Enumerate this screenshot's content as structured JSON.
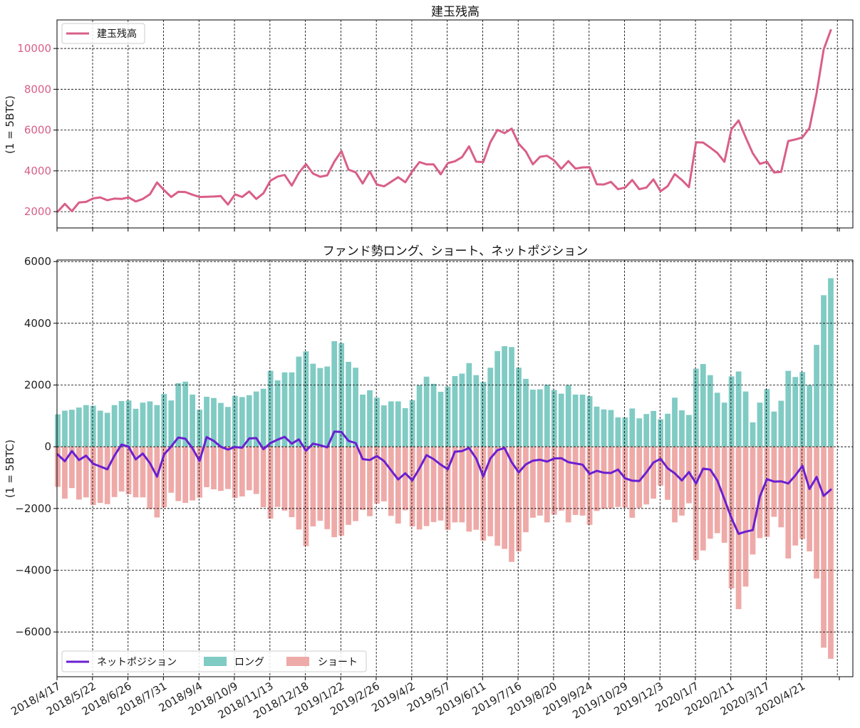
{
  "colors": {
    "oi_line": "#d95f87",
    "oi_tick": "#d95f87",
    "long_bar": "#80cbc4",
    "short_bar": "#eeaaa8",
    "net_line": "#6a1fd1",
    "grid": "#000000",
    "axis": "#000000",
    "text": "#222222"
  },
  "chart_data": [
    {
      "type": "line",
      "title": "建玉残高",
      "xlabel": "",
      "ylabel": "(1 = 5BTC)",
      "ylim": [
        1200,
        11400
      ],
      "yticks": [
        2000,
        4000,
        6000,
        8000,
        10000
      ],
      "grid": true,
      "legend_position": "top-left",
      "series": [
        {
          "name": "建玉残高",
          "values": [
            2000,
            2380,
            2020,
            2450,
            2480,
            2650,
            2700,
            2560,
            2640,
            2620,
            2700,
            2500,
            2620,
            2850,
            3430,
            3050,
            2720,
            2970,
            2960,
            2830,
            2720,
            2730,
            2740,
            2760,
            2350,
            2850,
            2720,
            2990,
            2620,
            2900,
            3520,
            3720,
            3800,
            3280,
            3900,
            4330,
            3870,
            3710,
            3780,
            4450,
            4970,
            4060,
            3930,
            3380,
            3970,
            3330,
            3240,
            3460,
            3690,
            3440,
            3980,
            4430,
            4320,
            4320,
            3830,
            4380,
            4470,
            4670,
            5200,
            4450,
            4430,
            5400,
            6010,
            5850,
            6070,
            5330,
            4950,
            4320,
            4690,
            4740,
            4510,
            4100,
            4480,
            4110,
            4170,
            4180,
            3340,
            3330,
            3460,
            3100,
            3180,
            3550,
            3100,
            3180,
            3580,
            3000,
            3250,
            3840,
            3550,
            3200,
            5400,
            5390,
            5140,
            4880,
            4440,
            6040,
            6470,
            5640,
            4860,
            4340,
            4450,
            3920,
            3950,
            5460,
            5540,
            5640,
            6100,
            7810,
            9950,
            10900
          ]
        }
      ]
    },
    {
      "type": "bar",
      "title": "ファンド勢ロング、ショート、ネットポジション",
      "xlabel": "",
      "ylabel": "(1 = 5BTC)",
      "ylim": [
        -7450,
        6050
      ],
      "yticks": [
        -6000,
        -4000,
        -2000,
        0,
        2000,
        4000,
        6000
      ],
      "grid": true,
      "legend_position": "bottom-left",
      "x_tick_labels": [
        "2018/4/17",
        "2018/5/22",
        "2018/6/26",
        "2018/7/31",
        "2018/9/4",
        "2018/10/9",
        "2018/11/13",
        "2018/12/18",
        "2019/1/22",
        "2019/2/26",
        "2019/4/2",
        "2019/5/7",
        "2019/6/11",
        "2019/7/16",
        "2019/8/20",
        "2019/9/24",
        "2019/10/29",
        "2019/12/3",
        "2020/1/7",
        "2020/2/11",
        "2020/3/17",
        "2020/4/21"
      ],
      "series": [
        {
          "name": "ロング",
          "type": "bar",
          "values": [
            1050,
            1170,
            1200,
            1270,
            1350,
            1330,
            1170,
            1100,
            1350,
            1480,
            1500,
            1230,
            1430,
            1470,
            1350,
            1710,
            1500,
            2060,
            2110,
            1690,
            1200,
            1620,
            1580,
            1420,
            1290,
            1650,
            1610,
            1670,
            1790,
            1880,
            2460,
            2150,
            2410,
            2410,
            2920,
            3090,
            2690,
            2550,
            2600,
            3420,
            3360,
            2750,
            2560,
            1690,
            1830,
            1590,
            1340,
            1470,
            1470,
            1250,
            1510,
            2000,
            2270,
            2040,
            1780,
            1950,
            2290,
            2370,
            2710,
            2320,
            2100,
            2560,
            3100,
            3260,
            3230,
            2560,
            2200,
            1850,
            1860,
            2010,
            1840,
            1720,
            2000,
            1690,
            1690,
            1640,
            1300,
            1210,
            1190,
            950,
            950,
            1240,
            920,
            1060,
            1160,
            890,
            1070,
            1590,
            1180,
            1030,
            2530,
            2680,
            2320,
            1750,
            1430,
            2280,
            2440,
            1790,
            790,
            1430,
            1870,
            1140,
            1490,
            2460,
            2260,
            2420,
            2000,
            3300,
            4910,
            5460
          ]
        },
        {
          "name": "ショート",
          "type": "bar",
          "values": [
            -1300,
            -1680,
            -1340,
            -1710,
            -1640,
            -1890,
            -1820,
            -1860,
            -1630,
            -1450,
            -1540,
            -1640,
            -1640,
            -2020,
            -2290,
            -1960,
            -1490,
            -1760,
            -1820,
            -1740,
            -1650,
            -1310,
            -1380,
            -1430,
            -1370,
            -1660,
            -1610,
            -1410,
            -1530,
            -1960,
            -2330,
            -1950,
            -2070,
            -2280,
            -2680,
            -3220,
            -2580,
            -2400,
            -2670,
            -2930,
            -2880,
            -2530,
            -2410,
            -2050,
            -2250,
            -1840,
            -1770,
            -2240,
            -2490,
            -2060,
            -2580,
            -2680,
            -2570,
            -2440,
            -2390,
            -2690,
            -2450,
            -2450,
            -2750,
            -2690,
            -3040,
            -2900,
            -3210,
            -3310,
            -3730,
            -3390,
            -2770,
            -2300,
            -2230,
            -2450,
            -2200,
            -2070,
            -2450,
            -2210,
            -2230,
            -2530,
            -2080,
            -2010,
            -2000,
            -1950,
            -1970,
            -2300,
            -1980,
            -1870,
            -1680,
            -1260,
            -1720,
            -2450,
            -2230,
            -1830,
            -3670,
            -3360,
            -2980,
            -2800,
            -3110,
            -4590,
            -5260,
            -4530,
            -3490,
            -2960,
            -2920,
            -2270,
            -2610,
            -3620,
            -3200,
            -2990,
            -3390,
            -4270,
            -6510,
            -6870
          ]
        },
        {
          "name": "ネットポジション",
          "type": "line",
          "values": [
            -250,
            -470,
            -140,
            -430,
            -290,
            -550,
            -640,
            -730,
            -290,
            70,
            0,
            -410,
            -220,
            -530,
            -970,
            -250,
            10,
            300,
            260,
            -50,
            -460,
            310,
            190,
            0,
            -90,
            -10,
            -30,
            270,
            280,
            -80,
            120,
            230,
            320,
            100,
            240,
            -130,
            100,
            50,
            -20,
            490,
            480,
            190,
            120,
            -400,
            -430,
            -300,
            -460,
            -760,
            -1060,
            -860,
            -1090,
            -700,
            -270,
            -400,
            -580,
            -730,
            -160,
            -140,
            -40,
            -380,
            -960,
            -380,
            -110,
            -40,
            -500,
            -830,
            -570,
            -450,
            -420,
            -480,
            -380,
            -370,
            -500,
            -540,
            -580,
            -880,
            -780,
            -840,
            -850,
            -740,
            -1020,
            -1100,
            -1110,
            -830,
            -510,
            -390,
            -700,
            -860,
            -1090,
            -820,
            -1190,
            -710,
            -740,
            -1090,
            -1700,
            -2310,
            -2820,
            -2750,
            -2700,
            -1610,
            -1050,
            -1130,
            -1120,
            -1190,
            -930,
            -620,
            -1370,
            -980,
            -1590,
            -1390
          ]
        }
      ]
    }
  ]
}
